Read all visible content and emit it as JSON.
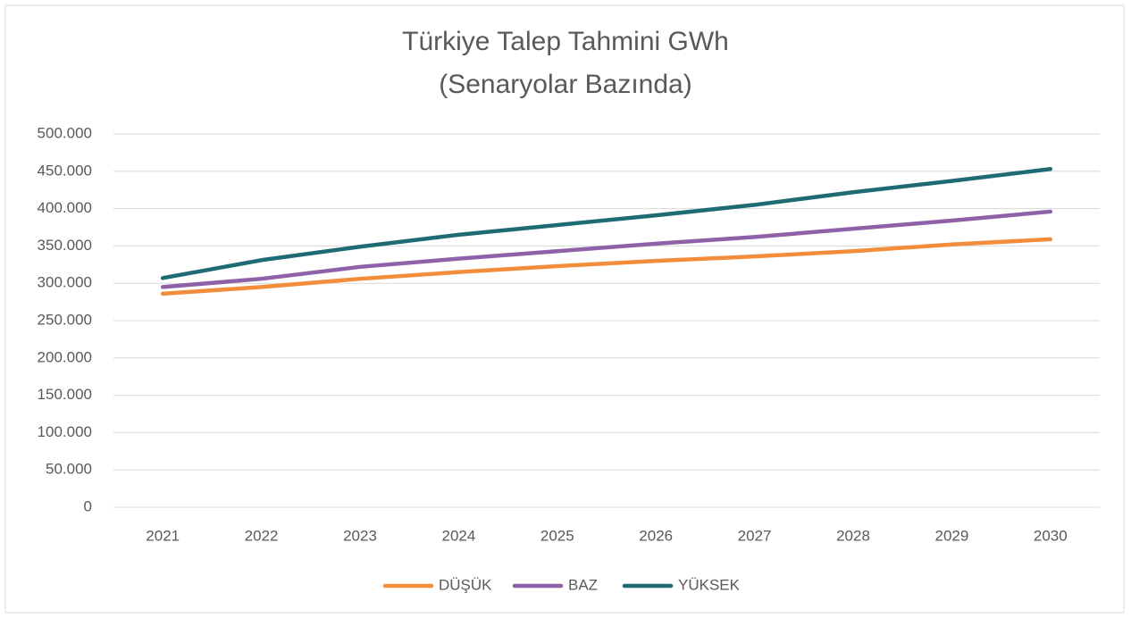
{
  "chart_data": {
    "type": "line",
    "title": "Türkiye Talep Tahmini GWh",
    "subtitle": "(Senaryolar Bazında)",
    "categories": [
      "2021",
      "2022",
      "2023",
      "2024",
      "2025",
      "2026",
      "2027",
      "2028",
      "2029",
      "2030"
    ],
    "series": [
      {
        "name": "DÜŞÜK",
        "color": "#f28e3b",
        "values": [
          286000,
          295000,
          306000,
          315000,
          323000,
          330000,
          336000,
          343000,
          352000,
          359000
        ]
      },
      {
        "name": "BAZ",
        "color": "#8e61a8",
        "values": [
          295000,
          306000,
          322000,
          333000,
          343000,
          353000,
          362000,
          373000,
          384000,
          396000
        ]
      },
      {
        "name": "YÜKSEK",
        "color": "#1f6b73",
        "values": [
          307000,
          331000,
          349000,
          365000,
          378000,
          391000,
          405000,
          422000,
          437000,
          453000
        ]
      }
    ],
    "ylim": [
      0,
      500000
    ],
    "yticks": [
      0,
      {
        "value": 50000,
        "label": "50.000"
      },
      {
        "value": 100000,
        "label": "100.000"
      },
      {
        "value": 150000,
        "label": "150.000"
      },
      {
        "value": 200000,
        "label": "200.000"
      },
      {
        "value": 250000,
        "label": "250.000"
      },
      {
        "value": 300000,
        "label": "300.000"
      },
      {
        "value": 350000,
        "label": "350.000"
      },
      {
        "value": 400000,
        "label": "400.000"
      },
      {
        "value": 450000,
        "label": "450.000"
      },
      {
        "value": 500000,
        "label": "500.000"
      }
    ],
    "grid": true,
    "legend": "bottom"
  }
}
